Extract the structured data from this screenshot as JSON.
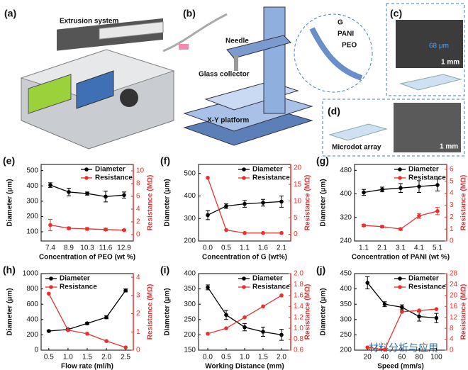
{
  "illustration": {
    "panel_a": "(a)",
    "extrusion": "Extrusion system",
    "panel_b": "(b)",
    "needle": "Needle",
    "glass_collector": "Glass collector",
    "xy_platform": "X-Y platform",
    "layer_g": "G",
    "layer_pani": "PANI",
    "layer_peo": "PEO",
    "panel_c": "(c)",
    "width": "68 μm",
    "scale_c": "1 mm",
    "panel_d": "(d)",
    "microdot": "Microdot array",
    "scale_d": "1 mm"
  },
  "watermark": "材料分析与应用",
  "chart_data": [
    {
      "type": "line",
      "panel": "(e)",
      "xlabel": "Concentration of PEO (wt %)",
      "ylabel": "Diameter (μm)",
      "y2label": "Resistance (MΩ)",
      "legend": "upper right",
      "categories": [
        "7.4",
        "8.9",
        "10.3",
        "11.6",
        "12.9"
      ],
      "ylim": [
        40,
        540
      ],
      "yticks": [
        100,
        200,
        300,
        400,
        500
      ],
      "y2lim": [
        -1,
        11
      ],
      "y2ticks": [
        0,
        2,
        4,
        6,
        8,
        10
      ],
      "series": [
        {
          "name": "Diameter",
          "color": "#000000",
          "values": [
            405,
            360,
            350,
            330,
            340
          ],
          "errors": [
            15,
            25,
            10,
            35,
            20
          ]
        },
        {
          "name": "Resistance",
          "color": "#e8312f",
          "axis": "y2",
          "values": [
            1.5,
            1.0,
            0.9,
            0.8,
            0.7
          ],
          "errors": [
            0.9,
            0.2,
            0.2,
            0.2,
            0.1
          ]
        }
      ]
    },
    {
      "type": "line",
      "panel": "(f)",
      "xlabel": "Concentration of G (wt%)",
      "ylabel": "Diameter (μm)",
      "y2label": "Resistance (MΩ)",
      "legend": "upper right",
      "categories": [
        "0.0",
        "0.5",
        "1.1",
        "1.6",
        "2.1"
      ],
      "ylim": [
        200,
        540
      ],
      "yticks": [
        200,
        300,
        400,
        500
      ],
      "y2lim": [
        -2,
        21
      ],
      "y2ticks": [
        0,
        5,
        10,
        15,
        20
      ],
      "series": [
        {
          "name": "Diameter",
          "color": "#000000",
          "values": [
            315,
            355,
            365,
            370,
            375
          ],
          "errors": [
            20,
            10,
            15,
            15,
            25
          ]
        },
        {
          "name": "Resistance",
          "color": "#e8312f",
          "axis": "y2",
          "values": [
            17,
            1.3,
            0.4,
            0.4,
            0.4
          ]
        }
      ]
    },
    {
      "type": "line",
      "panel": "(g)",
      "xlabel": "Concentration of PANI (wt %)",
      "ylabel": "Diameter (μm)",
      "y2label": "Resistance (MΩ)",
      "legend": "upper right",
      "categories": [
        "1.1",
        "2.1",
        "3.1",
        "4.1",
        "5.1"
      ],
      "ylim": [
        240,
        500
      ],
      "yticks": [
        240,
        320,
        400,
        480
      ],
      "y2lim": [
        0,
        6.4
      ],
      "y2ticks": [
        0,
        1,
        2,
        3,
        4,
        5,
        6
      ],
      "series": [
        {
          "name": "Diameter",
          "color": "#000000",
          "values": [
            405,
            415,
            420,
            425,
            430
          ],
          "errors": [
            10,
            8,
            15,
            20,
            20
          ]
        },
        {
          "name": "Resistance",
          "color": "#e8312f",
          "axis": "y2",
          "values": [
            1.3,
            1.2,
            1.0,
            2.1,
            2.5
          ],
          "errors": [
            0.1,
            0.1,
            0.1,
            0.2,
            0.3
          ]
        }
      ]
    },
    {
      "type": "line",
      "panel": "(h)",
      "xlabel": "Flow rate (ml/h)",
      "ylabel": "Diameter (μm)",
      "y2label": "Resistance (MΩ)",
      "legend": "upper left",
      "x": [
        0.5,
        1.0,
        1.5,
        2.0,
        2.5
      ],
      "xlim": [
        0.3,
        2.7
      ],
      "xticks": [
        0.5,
        {
          "value": 1.0,
          "label": "1.0"
        },
        1.5,
        {
          "value": 2.0,
          "label": "2.0"
        },
        2.5
      ],
      "ylim": [
        0,
        1000
      ],
      "yticks": [
        0,
        200,
        400,
        600,
        800,
        1000
      ],
      "y2lim": [
        0,
        4.2
      ],
      "y2ticks": [
        0,
        1,
        2,
        3,
        4
      ],
      "series": [
        {
          "name": "Diameter",
          "color": "#000000",
          "values": [
            250,
            270,
            350,
            430,
            780
          ],
          "errors": [
            8,
            15,
            15,
            20,
            20
          ]
        },
        {
          "name": "Resistance",
          "color": "#e8312f",
          "axis": "y2",
          "values": [
            3.1,
            1.1,
            0.9,
            0.5,
            0.15
          ]
        }
      ]
    },
    {
      "type": "line",
      "panel": "(i)",
      "xlabel": "Working Distance (mm)",
      "ylabel": "Diameter (μm)",
      "y2label": "Resistance (MΩ)",
      "legend": "upper right",
      "x": [
        0.0,
        0.5,
        1.0,
        1.5,
        2.0
      ],
      "xlim": [
        -0.25,
        2.25
      ],
      "xticks": [
        {
          "value": 0.0,
          "label": "0.0"
        },
        0.5,
        {
          "value": 1.0,
          "label": "1.0"
        },
        1.5,
        {
          "value": 2.0,
          "label": "2.0"
        }
      ],
      "ylim": [
        150,
        400
      ],
      "yticks": [
        150,
        200,
        250,
        300,
        350,
        400
      ],
      "y2lim": [
        0.6,
        2.0
      ],
      "y2ticks": [
        0.6,
        0.8,
        {
          "value": 1.0,
          "label": "1.0"
        },
        1.2,
        1.4,
        1.6,
        1.8,
        {
          "value": 2.0,
          "label": "2.0"
        }
      ],
      "series": [
        {
          "name": "Diameter",
          "color": "#000000",
          "values": [
            355,
            265,
            225,
            210,
            200
          ],
          "errors": [
            8,
            15,
            12,
            15,
            18
          ]
        },
        {
          "name": "Resistance",
          "color": "#e8312f",
          "axis": "y2",
          "values": [
            0.9,
            1.0,
            1.2,
            1.4,
            1.6
          ]
        }
      ]
    },
    {
      "type": "line",
      "panel": "(j)",
      "xlabel": "Speed (mm/s)",
      "ylabel": "Diameter (μm)",
      "y2label": "Resistance (MΩ)",
      "legend": "upper right",
      "x": [
        20,
        40,
        60,
        80,
        100
      ],
      "xlim": [
        5,
        112
      ],
      "xticks": [
        20,
        40,
        60,
        80,
        100
      ],
      "ylim": [
        200,
        450
      ],
      "yticks": [
        200,
        250,
        300,
        350,
        400,
        450
      ],
      "y2lim": [
        0,
        28
      ],
      "y2ticks": [
        0,
        4,
        8,
        12,
        16,
        20,
        24,
        28
      ],
      "series": [
        {
          "name": "Diameter",
          "color": "#000000",
          "values": [
            420,
            350,
            340,
            310,
            305
          ],
          "errors": [
            20,
            8,
            8,
            15,
            15
          ]
        },
        {
          "name": "Resistance",
          "color": "#e8312f",
          "axis": "y2",
          "values": [
            1,
            0.2,
            14,
            14.5,
            15
          ]
        }
      ]
    }
  ]
}
